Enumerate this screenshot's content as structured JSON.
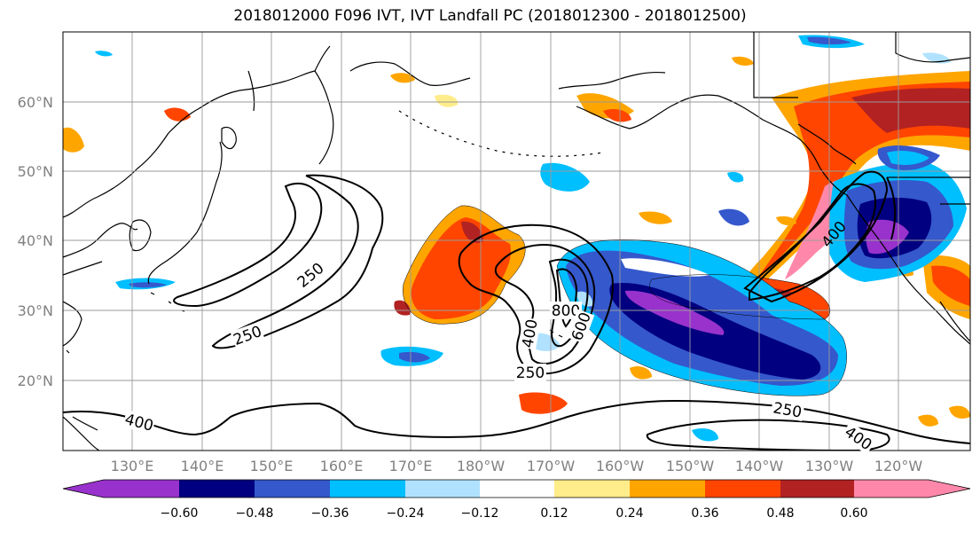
{
  "title": "2018012000 F096 IVT, IVT Landfall PC (2018012300 - 2018012500)",
  "map": {
    "lat_labels": [
      "60°N",
      "50°N",
      "40°N",
      "30°N",
      "20°N"
    ],
    "lon_labels": [
      "130°E",
      "140°E",
      "150°E",
      "160°E",
      "170°E",
      "180°W",
      "170°W",
      "160°W",
      "150°W",
      "140°W",
      "130°W",
      "120°W"
    ],
    "gridlines": true,
    "contour_labels": [
      {
        "name": "contour-label-250-west",
        "text": "250"
      },
      {
        "name": "contour-label-250-west-lower",
        "text": "250"
      },
      {
        "name": "contour-label-400-south",
        "text": "400"
      },
      {
        "name": "contour-label-800",
        "text": "800"
      },
      {
        "name": "contour-label-600",
        "text": "600"
      },
      {
        "name": "contour-label-400-center",
        "text": "400"
      },
      {
        "name": "contour-label-250-center",
        "text": "250"
      },
      {
        "name": "contour-label-250-east",
        "text": "250"
      },
      {
        "name": "contour-label-400-east",
        "text": "400"
      },
      {
        "name": "contour-label-400-coast",
        "text": "400"
      }
    ]
  },
  "colorbar": {
    "ticks": [
      "−0.60",
      "−0.48",
      "−0.36",
      "−0.24",
      "−0.12",
      "0.12",
      "0.24",
      "0.36",
      "0.48",
      "0.60"
    ],
    "colors": [
      "#9932cc",
      "#000080",
      "#3558cc",
      "#00bfff",
      "#b0e2ff",
      "#ffffff",
      "#ffec8b",
      "#ffa500",
      "#ff4500",
      "#b22222",
      "#ff88aa"
    ]
  }
}
